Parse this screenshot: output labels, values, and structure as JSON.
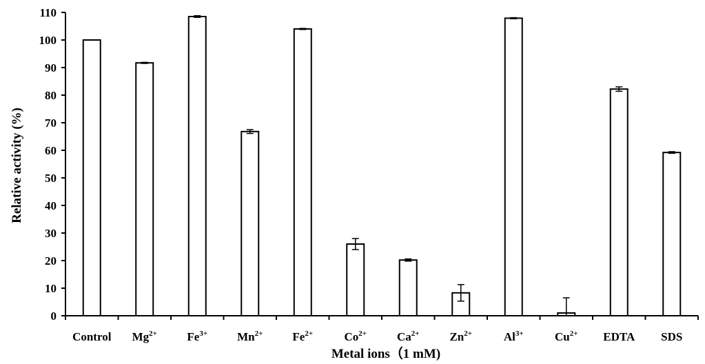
{
  "chart_data": {
    "type": "bar",
    "title": "",
    "xlabel": "Metal ions（1 mM)",
    "ylabel": "Relative activity (%)",
    "ylim": [
      0,
      110
    ],
    "yticks": [
      0,
      10,
      20,
      30,
      40,
      50,
      60,
      70,
      80,
      90,
      100,
      110
    ],
    "grid": false,
    "legend": "none",
    "categories": [
      {
        "base": "Control",
        "sup": ""
      },
      {
        "base": "Mg",
        "sup": "2+"
      },
      {
        "base": "Fe",
        "sup": "3+"
      },
      {
        "base": "Mn",
        "sup": "2+"
      },
      {
        "base": "Fe",
        "sup": "2+"
      },
      {
        "base": "Co",
        "sup": "2+"
      },
      {
        "base": "Ca",
        "sup": "2+"
      },
      {
        "base": "Zn",
        "sup": "2+"
      },
      {
        "base": "Al",
        "sup": "3+"
      },
      {
        "base": "Cu",
        "sup": "2+"
      },
      {
        "base": "EDTA",
        "sup": ""
      },
      {
        "base": "SDS",
        "sup": ""
      }
    ],
    "series": [
      {
        "values": [
          100,
          91.7,
          108.5,
          66.8,
          104,
          26,
          20.2,
          8.3,
          107.9,
          1,
          82.2,
          59.2
        ],
        "errors": [
          0,
          0.2,
          0.3,
          0.7,
          0.2,
          2,
          0.4,
          3,
          0.2,
          5.5,
          0.8,
          0.3
        ]
      }
    ],
    "colors": {
      "bar_fill": "#ffffff",
      "bar_stroke": "#000000",
      "axis": "#000000"
    }
  }
}
